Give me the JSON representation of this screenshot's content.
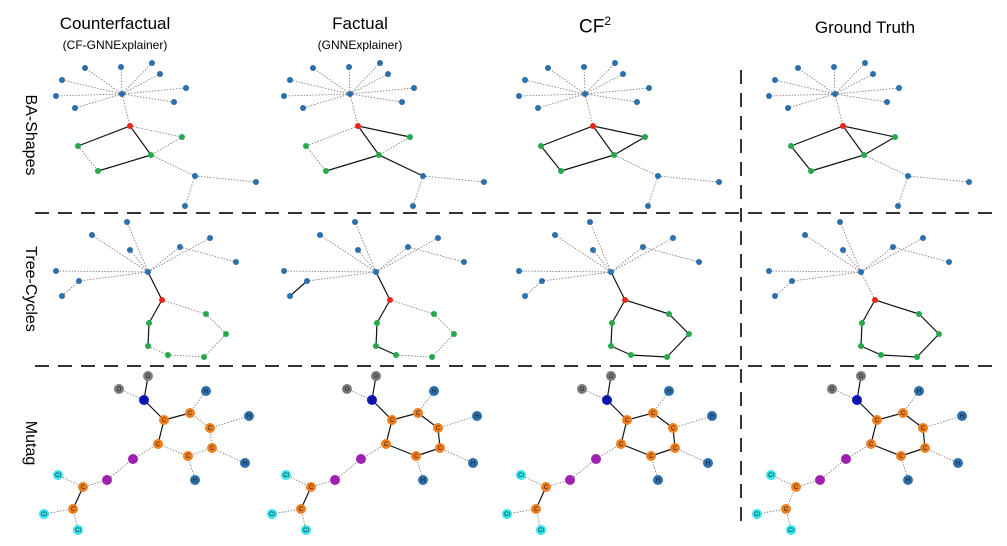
{
  "columns": [
    {
      "title": "Counterfactual",
      "subtitle": "(CF-GNNExplainer)"
    },
    {
      "title": "Factual",
      "subtitle": "(GNNExplainer)"
    },
    {
      "title": "CF",
      "superscript": "2"
    },
    {
      "title": "Ground Truth"
    }
  ],
  "rows": [
    "BA-Shapes",
    "Tree-Cycles",
    "Mutag"
  ],
  "colors": {
    "ba_node": "#2c6fad",
    "center": "#e8261b",
    "motif": "#26a84d",
    "carbon": "#f07f20",
    "nitrogen": "#0b14c4",
    "oxygen": "#7a7a7a",
    "hydrogen": "#2c6fad",
    "chlorine": "#34e3ec",
    "linker": "#a020b0"
  },
  "atom_labels": {
    "carbon": "C",
    "nitrogen": "N",
    "oxygen": "O",
    "hydrogen": "H",
    "chlorine": "Cl"
  }
}
